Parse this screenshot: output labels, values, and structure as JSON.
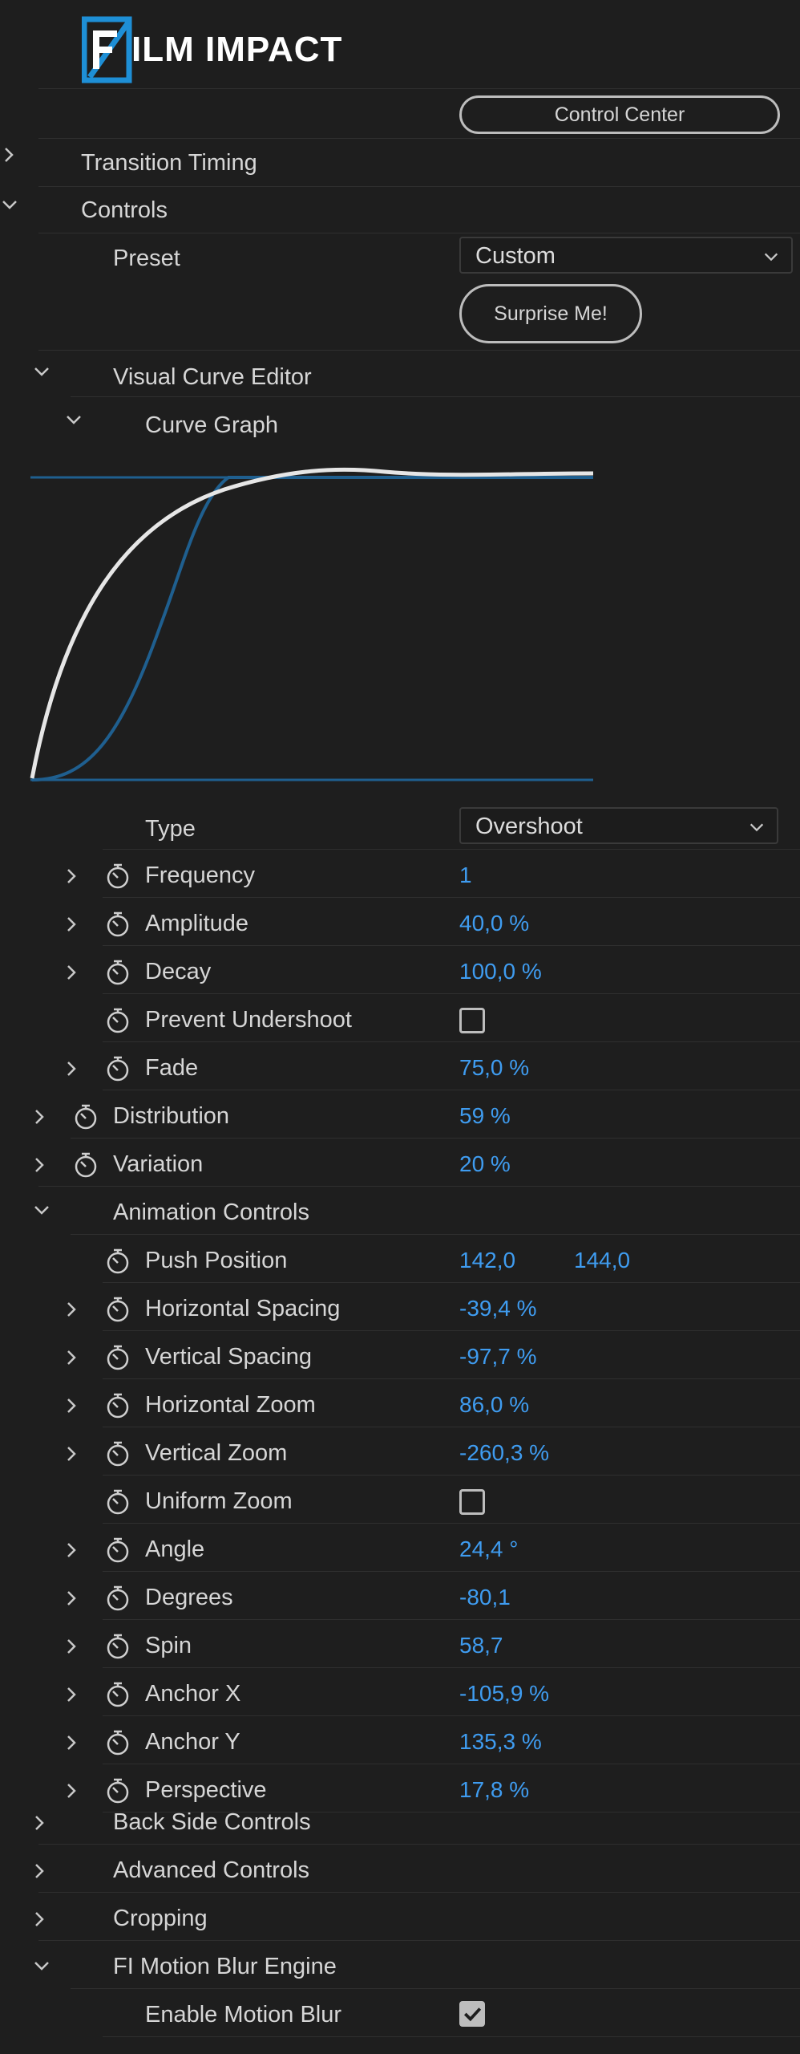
{
  "logo": {
    "text": "FILM IMPACT",
    "mark_letter": "F",
    "text_rest": "ILM IMPACT"
  },
  "header": {
    "control_center_label": "Control Center"
  },
  "sections": {
    "transition_timing": "Transition Timing",
    "controls": "Controls",
    "visual_curve_editor": "Visual Curve Editor",
    "curve_graph": "Curve Graph",
    "animation_controls": "Animation Controls",
    "back_side_controls": "Back Side Controls",
    "advanced_controls": "Advanced Controls",
    "cropping": "Cropping",
    "motion_blur_engine": "FI Motion Blur Engine"
  },
  "preset": {
    "label": "Preset",
    "value": "Custom",
    "surprise_label": "Surprise Me!"
  },
  "type": {
    "label": "Type",
    "value": "Overshoot"
  },
  "curve_params": [
    {
      "label": "Frequency",
      "value": "1"
    },
    {
      "label": "Amplitude",
      "value": "40,0 %"
    },
    {
      "label": "Decay",
      "value": "100,0 %"
    },
    {
      "label": "Prevent Undershoot",
      "checkbox": false
    },
    {
      "label": "Fade",
      "value": "75,0 %"
    }
  ],
  "distribution": {
    "label": "Distribution",
    "value": "59 %"
  },
  "variation": {
    "label": "Variation",
    "value": "20 %"
  },
  "animation_params": [
    {
      "label": "Push Position",
      "value": "142,0",
      "value2": "144,0"
    },
    {
      "label": "Horizontal Spacing",
      "value": "-39,4 %"
    },
    {
      "label": "Vertical Spacing",
      "value": "-97,7 %"
    },
    {
      "label": "Horizontal Zoom",
      "value": "86,0 %"
    },
    {
      "label": "Vertical Zoom",
      "value": "-260,3 %"
    },
    {
      "label": "Uniform Zoom",
      "checkbox": false
    },
    {
      "label": "Angle",
      "value": "24,4 °"
    },
    {
      "label": "Degrees",
      "value": "-80,1"
    },
    {
      "label": "Spin",
      "value": "58,7"
    },
    {
      "label": "Anchor X",
      "value": "-105,9 %"
    },
    {
      "label": "Anchor Y",
      "value": "135,3 %"
    },
    {
      "label": "Perspective",
      "value": "17,8 %"
    }
  ],
  "motion_blur": {
    "label": "Enable Motion Blur",
    "checked": true
  },
  "colors": {
    "background": "#1e1e1e",
    "value_blue": "#3f9cf0",
    "curve_white": "#e6e6e6",
    "curve_blue": "#1f5f8f",
    "logo_blue": "#1e8fd6"
  }
}
